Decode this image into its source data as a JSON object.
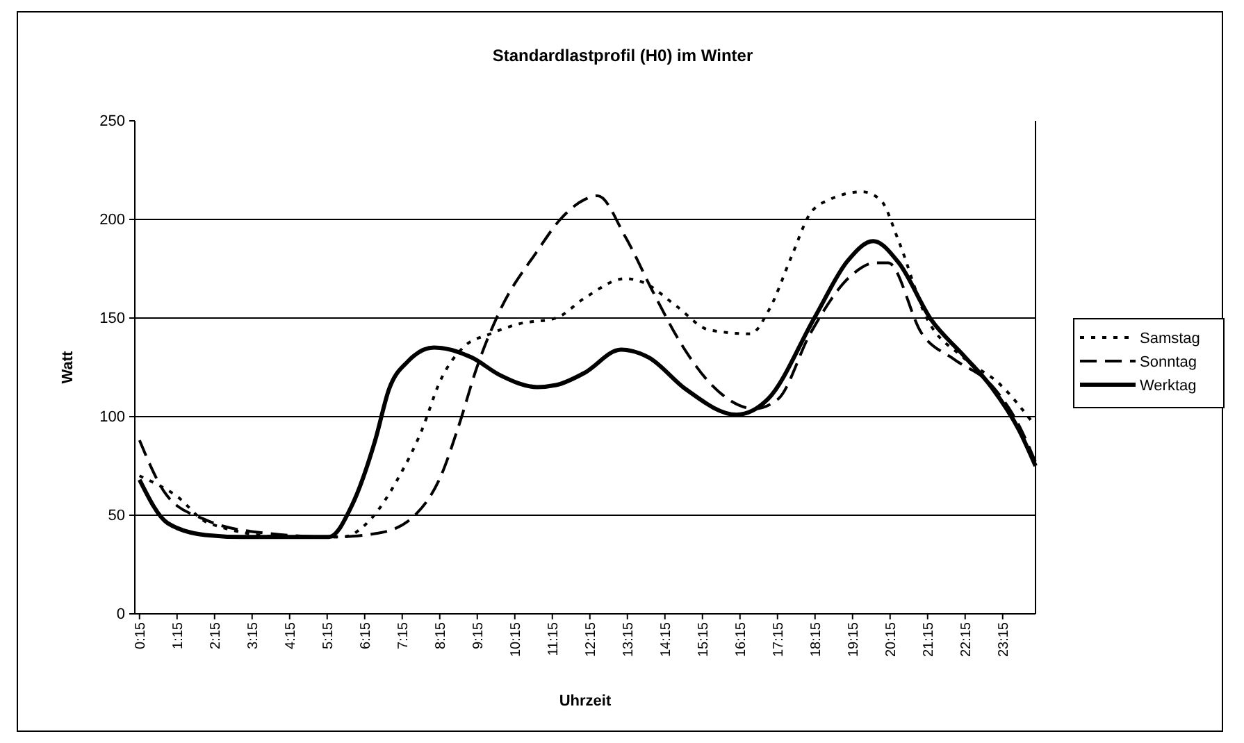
{
  "chart_data": {
    "type": "line",
    "title": "Standardlastprofil (H0) im Winter",
    "xlabel": "Uhrzeit",
    "ylabel": "Watt",
    "xlim": [
      0.125,
      24.125
    ],
    "xticks": [
      {
        "value": 0.25,
        "label": "0:15"
      },
      {
        "value": 1.25,
        "label": "1:15"
      },
      {
        "value": 2.25,
        "label": "2:15"
      },
      {
        "value": 3.25,
        "label": "3:15"
      },
      {
        "value": 4.25,
        "label": "4:15"
      },
      {
        "value": 5.25,
        "label": "5:15"
      },
      {
        "value": 6.25,
        "label": "6:15"
      },
      {
        "value": 7.25,
        "label": "7:15"
      },
      {
        "value": 8.25,
        "label": "8:15"
      },
      {
        "value": 9.25,
        "label": "9:15"
      },
      {
        "value": 10.25,
        "label": "10:15"
      },
      {
        "value": 11.25,
        "label": "11:15"
      },
      {
        "value": 12.25,
        "label": "12:15"
      },
      {
        "value": 13.25,
        "label": "13:15"
      },
      {
        "value": 14.25,
        "label": "14:15"
      },
      {
        "value": 15.25,
        "label": "15:15"
      },
      {
        "value": 16.25,
        "label": "16:15"
      },
      {
        "value": 17.25,
        "label": "17:15"
      },
      {
        "value": 18.25,
        "label": "18:15"
      },
      {
        "value": 19.25,
        "label": "19:15"
      },
      {
        "value": 20.25,
        "label": "20:15"
      },
      {
        "value": 21.25,
        "label": "21:15"
      },
      {
        "value": 22.25,
        "label": "22:15"
      },
      {
        "value": 23.25,
        "label": "23:15"
      }
    ],
    "ylim": [
      0,
      250
    ],
    "yticks": [
      0,
      50,
      100,
      150,
      200,
      250
    ],
    "grid": "y",
    "legend": "right",
    "marker": "none",
    "series": [
      {
        "name": "Samstag",
        "color": "#000000",
        "line_style": "dotted",
        "x": [
          0.25,
          1.22,
          2.09,
          4.19,
          5.67,
          6.41,
          7.15,
          7.77,
          8.26,
          8.87,
          9.6,
          10.35,
          11.35,
          12.1,
          13.2,
          13.68,
          14.56,
          15.42,
          16.53,
          17.02,
          17.64,
          18.12,
          18.63,
          19.5,
          19.99,
          20.48,
          21.2,
          22.2,
          23.2,
          24.05
        ],
        "values": [
          70,
          60,
          46,
          39,
          39,
          48,
          69,
          93,
          118,
          135,
          142,
          147,
          150,
          160,
          170,
          168,
          156,
          144,
          142,
          154,
          182,
          203,
          210,
          214,
          210,
          189,
          151,
          130,
          116,
          97
        ]
      },
      {
        "name": "Sonntag",
        "color": "#000000",
        "line_style": "dashed",
        "x": [
          0.25,
          0.98,
          1.97,
          3.57,
          5.42,
          6.64,
          7.64,
          8.26,
          8.75,
          9.24,
          9.86,
          10.85,
          11.46,
          12.1,
          12.46,
          13.2,
          13.94,
          14.68,
          15.5,
          16.64,
          17.27,
          18.12,
          19.24,
          19.86,
          20.2,
          21.1,
          21.96,
          22.95,
          23.7,
          24.125
        ],
        "values": [
          88,
          60,
          48,
          41,
          39,
          41,
          51,
          69,
          95,
          125,
          154,
          184,
          200,
          210,
          212,
          191,
          163,
          137,
          116,
          104,
          109,
          142,
          172,
          178,
          178,
          142,
          129,
          116,
          95,
          77
        ]
      },
      {
        "name": "Werktag",
        "color": "#000000",
        "line_style": "solid",
        "x": [
          0.25,
          1.0,
          2.0,
          3.0,
          4.0,
          5.3,
          5.91,
          6.53,
          6.9,
          7.4,
          8.1,
          9.1,
          9.86,
          10.85,
          11.35,
          12.09,
          13.08,
          13.82,
          14.8,
          16.16,
          17.0,
          18.26,
          19.12,
          19.8,
          20.48,
          21.35,
          22.21,
          22.95,
          23.69,
          24.125
        ],
        "values": [
          68,
          46,
          40,
          39,
          39,
          39,
          55,
          88,
          114,
          128,
          135,
          130,
          121,
          115,
          116,
          122,
          134,
          130,
          114,
          101,
          109,
          151,
          179,
          189,
          178,
          149,
          131,
          115,
          93,
          75
        ]
      }
    ]
  }
}
